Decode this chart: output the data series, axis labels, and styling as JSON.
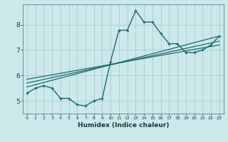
{
  "xlabel": "Humidex (Indice chaleur)",
  "bg_color": "#cce8ea",
  "grid_color": "#aaccce",
  "line_color": "#1a6b6e",
  "xlim": [
    -0.5,
    23.5
  ],
  "ylim": [
    4.5,
    8.8
  ],
  "yticks": [
    5,
    6,
    7,
    8
  ],
  "xticks": [
    0,
    1,
    2,
    3,
    4,
    5,
    6,
    7,
    8,
    9,
    10,
    11,
    12,
    13,
    14,
    15,
    16,
    17,
    18,
    19,
    20,
    21,
    22,
    23
  ],
  "main_data_x": [
    0,
    1,
    2,
    3,
    4,
    5,
    6,
    7,
    8,
    9,
    10,
    11,
    12,
    13,
    14,
    15,
    16,
    17,
    18,
    19,
    20,
    21,
    22,
    23
  ],
  "main_data_y": [
    5.3,
    5.5,
    5.6,
    5.5,
    5.1,
    5.1,
    4.85,
    4.8,
    5.0,
    5.1,
    6.55,
    7.78,
    7.78,
    8.55,
    8.1,
    8.1,
    7.65,
    7.25,
    7.25,
    6.9,
    6.9,
    7.0,
    7.2,
    7.55
  ],
  "trend1_x": [
    0,
    23
  ],
  "trend1_y": [
    5.55,
    7.55
  ],
  "trend2_x": [
    0,
    23
  ],
  "trend2_y": [
    5.7,
    7.35
  ],
  "trend3_x": [
    0,
    23
  ],
  "trend3_y": [
    5.85,
    7.2
  ]
}
